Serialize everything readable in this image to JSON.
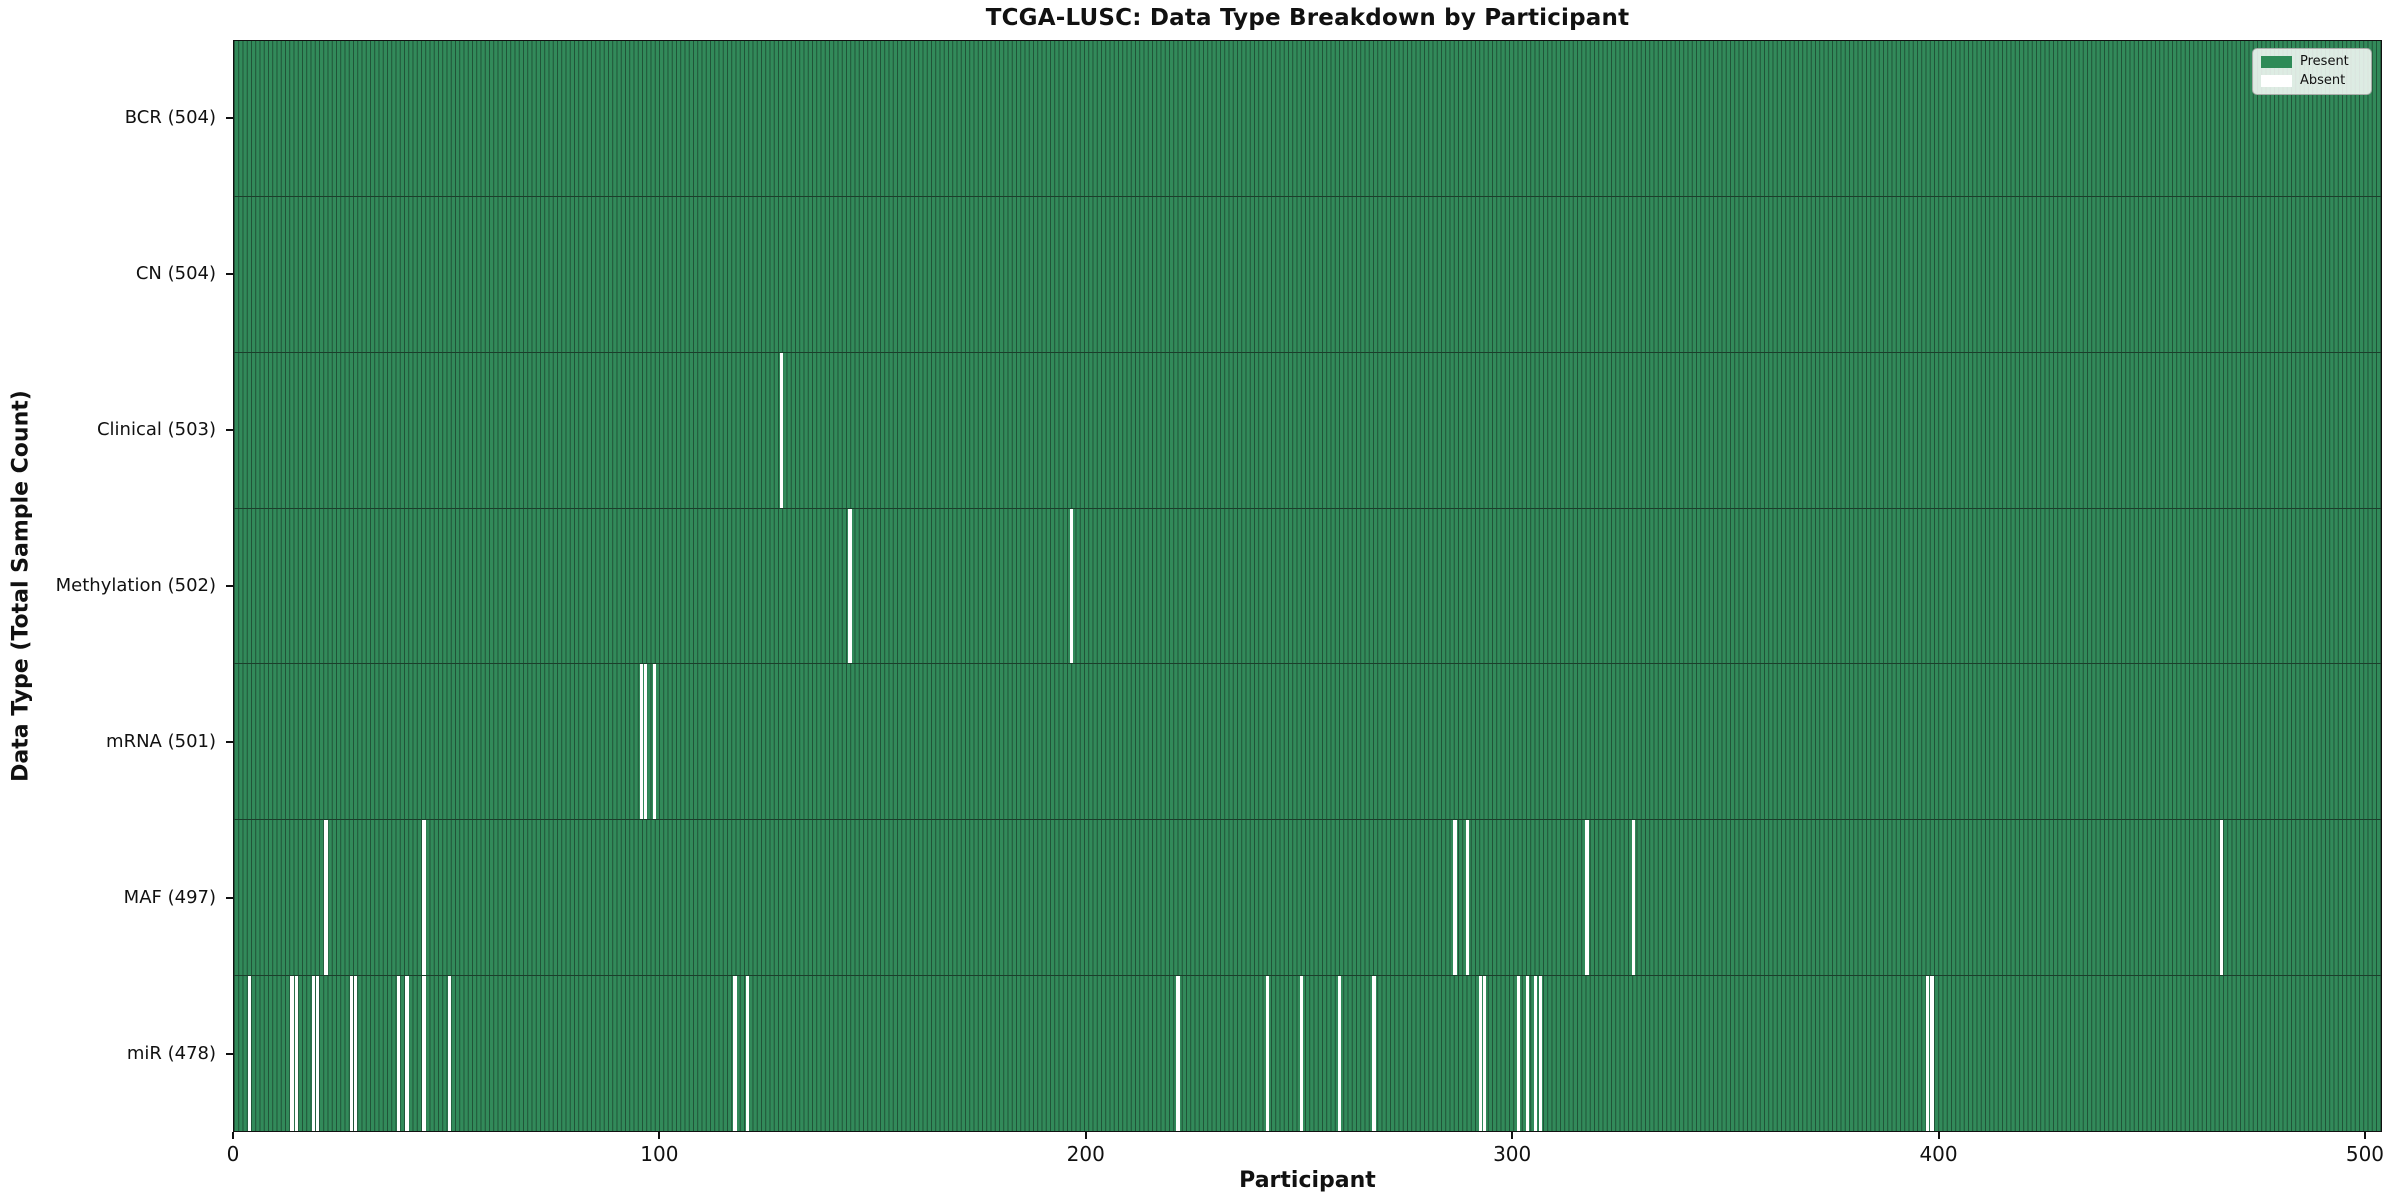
{
  "title": "TCGA-LUSC: Data Type Breakdown by Participant",
  "x_axis": {
    "label": "Participant",
    "tick_values": [
      0,
      100,
      200,
      300,
      400,
      500
    ]
  },
  "y_axis": {
    "label": "Data Type (Total Sample Count)"
  },
  "legend": {
    "items": [
      {
        "label": "Present",
        "color": "#2e8b57"
      },
      {
        "label": "Absent",
        "color": "#ffffff"
      }
    ]
  },
  "colors": {
    "present_fill": "#328a5a",
    "bar_edge": "#1f5136",
    "absent": "#ffffff",
    "text": "#111111"
  },
  "chart_data": {
    "type": "heatmap",
    "title": "TCGA-LUSC: Data Type Breakdown by Participant",
    "xlabel": "Participant",
    "ylabel": "Data Type (Total Sample Count)",
    "x_range": [
      0,
      504
    ],
    "total_participants": 504,
    "legend_position": "upper right",
    "value_encoding": {
      "present": "#2e8b57",
      "absent": "#ffffff"
    },
    "rows": [
      {
        "data_type": "BCR",
        "label": "BCR (504)",
        "present_count": 504,
        "absent_participants": []
      },
      {
        "data_type": "CN",
        "label": "CN (504)",
        "present_count": 504,
        "absent_participants": []
      },
      {
        "data_type": "Clinical",
        "label": "Clinical (503)",
        "present_count": 503,
        "absent_participants": [
          128
        ]
      },
      {
        "data_type": "Methylation",
        "label": "Methylation (502)",
        "present_count": 502,
        "absent_participants": [
          144,
          196
        ]
      },
      {
        "data_type": "mRNA",
        "label": "mRNA (501)",
        "present_count": 501,
        "absent_participants": [
          95,
          96,
          98
        ]
      },
      {
        "data_type": "MAF",
        "label": "MAF (497)",
        "present_count": 497,
        "absent_participants": [
          21,
          44,
          286,
          289,
          317,
          328,
          466
        ]
      },
      {
        "data_type": "miR",
        "label": "miR (478)",
        "present_count": 478,
        "absent_participants": [
          3,
          13,
          14,
          18,
          19,
          27,
          28,
          38,
          40,
          44,
          50,
          117,
          120,
          221,
          242,
          250,
          259,
          267,
          292,
          293,
          301,
          303,
          305,
          306,
          397,
          398
        ]
      }
    ]
  }
}
